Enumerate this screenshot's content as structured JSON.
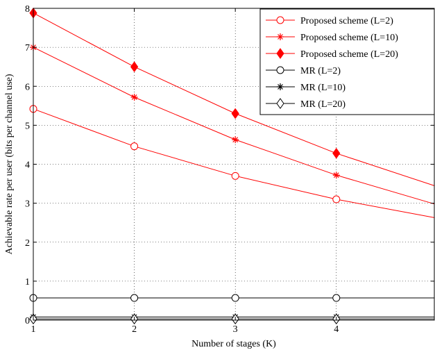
{
  "chart_data": {
    "type": "line",
    "xlabel": "Number of stages (K)",
    "ylabel": "Achievable rate per user (bits per channel use)",
    "xlim": [
      1,
      4.97
    ],
    "ylim": [
      0,
      8
    ],
    "xticks": [
      1,
      2,
      3,
      4
    ],
    "yticks": [
      0,
      1,
      2,
      3,
      4,
      5,
      6,
      7,
      8
    ],
    "grid": true,
    "legend_position": "top-right",
    "x": [
      1,
      2,
      3,
      4,
      4.97
    ],
    "series": [
      {
        "name": "Proposed scheme (L=2)",
        "values": [
          5.42,
          4.46,
          3.7,
          3.1,
          2.63
        ],
        "color": "#ff0000",
        "marker": "circle"
      },
      {
        "name": "Proposed scheme (L=10)",
        "values": [
          7.0,
          5.72,
          4.63,
          3.72,
          2.98
        ],
        "color": "#ff0000",
        "marker": "star"
      },
      {
        "name": "Proposed scheme (L=20)",
        "values": [
          7.88,
          6.5,
          5.3,
          4.28,
          3.45
        ],
        "color": "#ff0000",
        "marker": "diamond-filled"
      },
      {
        "name": "MR (L=2)",
        "values": [
          0.57,
          0.57,
          0.57,
          0.57,
          0.57
        ],
        "color": "#000000",
        "marker": "circle"
      },
      {
        "name": "MR (L=10)",
        "values": [
          0.08,
          0.08,
          0.08,
          0.08,
          0.08
        ],
        "color": "#000000",
        "marker": "star"
      },
      {
        "name": "MR (L=20)",
        "values": [
          0.03,
          0.03,
          0.03,
          0.03,
          0.03
        ],
        "color": "#000000",
        "marker": "diamond"
      }
    ]
  }
}
